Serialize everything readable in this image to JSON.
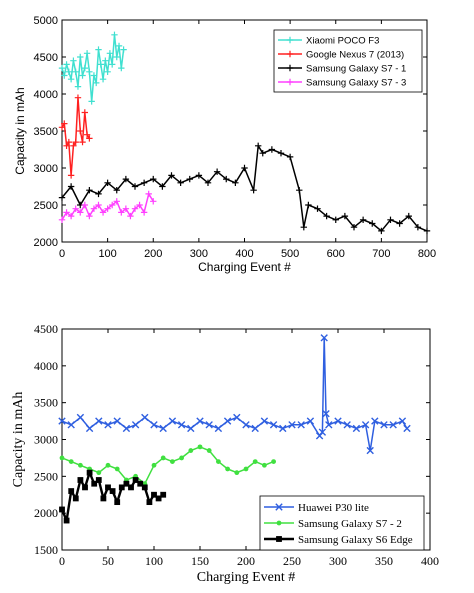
{
  "chart_data": [
    {
      "type": "line",
      "xlabel": "Charging Event #",
      "ylabel": "Capacity in mAh",
      "xlim": [
        0,
        800
      ],
      "ylim": [
        2000,
        5000
      ],
      "xticks": [
        "0",
        "100",
        "200",
        "300",
        "400",
        "500",
        "600",
        "700",
        "800"
      ],
      "yticks": [
        "2000",
        "2500",
        "3000",
        "3500",
        "4000",
        "4500",
        "5000"
      ],
      "grid": false,
      "legend_position": "top-right",
      "marker": "plus",
      "series": [
        {
          "name": "Xiaomi POCO F3",
          "color": "#40E0D0",
          "x": [
            0,
            5,
            10,
            15,
            20,
            25,
            30,
            35,
            40,
            45,
            50,
            55,
            60,
            65,
            70,
            75,
            80,
            85,
            90,
            95,
            100,
            105,
            110,
            115,
            120,
            125,
            130,
            135
          ],
          "values": [
            4350,
            4250,
            4400,
            4300,
            4200,
            4450,
            4300,
            4100,
            4500,
            4250,
            4350,
            4550,
            4300,
            3900,
            4250,
            4150,
            4600,
            4400,
            4200,
            4450,
            4300,
            4550,
            4400,
            4800,
            4500,
            4650,
            4350,
            4600
          ]
        },
        {
          "name": "Google Nexus 7 (2013)",
          "color": "#FF2020",
          "x": [
            0,
            5,
            10,
            15,
            20,
            25,
            30,
            35,
            40,
            45,
            50,
            55,
            60
          ],
          "values": [
            3550,
            3600,
            3300,
            3350,
            2900,
            3300,
            3350,
            3950,
            3500,
            3350,
            3750,
            3450,
            3400
          ]
        },
        {
          "name": "Samsung Galaxy S7 - 1",
          "color": "#000000",
          "x": [
            0,
            20,
            40,
            60,
            80,
            100,
            120,
            140,
            160,
            180,
            200,
            220,
            240,
            260,
            280,
            300,
            320,
            340,
            360,
            380,
            400,
            420,
            430,
            440,
            460,
            480,
            500,
            520,
            530,
            540,
            560,
            580,
            600,
            620,
            640,
            660,
            680,
            700,
            720,
            740,
            760,
            780,
            800
          ],
          "values": [
            2600,
            2750,
            2500,
            2700,
            2650,
            2800,
            2700,
            2850,
            2750,
            2800,
            2850,
            2750,
            2900,
            2800,
            2850,
            2900,
            2800,
            2950,
            2850,
            2800,
            3000,
            2700,
            3300,
            3200,
            3250,
            3200,
            3150,
            2700,
            2200,
            2500,
            2450,
            2350,
            2300,
            2350,
            2200,
            2300,
            2250,
            2150,
            2300,
            2250,
            2350,
            2200,
            2150
          ]
        },
        {
          "name": "Samsung Galaxy S7 - 3",
          "color": "#FF40FF",
          "x": [
            0,
            10,
            20,
            30,
            40,
            50,
            60,
            70,
            80,
            90,
            100,
            110,
            120,
            130,
            140,
            150,
            160,
            170,
            180,
            190,
            200
          ],
          "values": [
            2300,
            2400,
            2350,
            2450,
            2400,
            2500,
            2350,
            2450,
            2500,
            2400,
            2450,
            2500,
            2550,
            2400,
            2450,
            2350,
            2450,
            2500,
            2400,
            2650,
            2550
          ]
        }
      ]
    },
    {
      "type": "line",
      "xlabel": "Charging Event #",
      "ylabel": "Capacity in mAh",
      "xlim": [
        0,
        400
      ],
      "ylim": [
        1500,
        4500
      ],
      "xticks": [
        "0",
        "50",
        "100",
        "150",
        "200",
        "250",
        "300",
        "350",
        "400"
      ],
      "yticks": [
        "1500",
        "2000",
        "2500",
        "3000",
        "3500",
        "4000",
        "4500"
      ],
      "grid": false,
      "legend_position": "bottom-right",
      "series": [
        {
          "name": "Huawei P30 lite",
          "color": "#2F5FE0",
          "marker": "x",
          "x": [
            0,
            10,
            20,
            30,
            40,
            50,
            60,
            70,
            80,
            90,
            100,
            110,
            120,
            130,
            140,
            150,
            160,
            170,
            180,
            190,
            200,
            210,
            220,
            230,
            240,
            250,
            260,
            270,
            280,
            283,
            285,
            287,
            290,
            300,
            310,
            320,
            330,
            335,
            340,
            350,
            360,
            370,
            375
          ],
          "values": [
            3250,
            3200,
            3300,
            3150,
            3250,
            3200,
            3250,
            3150,
            3200,
            3300,
            3200,
            3150,
            3250,
            3200,
            3150,
            3250,
            3200,
            3150,
            3250,
            3300,
            3200,
            3150,
            3250,
            3200,
            3150,
            3200,
            3200,
            3250,
            3050,
            3100,
            4380,
            3350,
            3200,
            3250,
            3200,
            3150,
            3200,
            2850,
            3250,
            3200,
            3200,
            3250,
            3150
          ]
        },
        {
          "name": "Samsung Galaxy S7 - 2",
          "color": "#40E040",
          "marker": "dot",
          "x": [
            0,
            10,
            20,
            30,
            40,
            50,
            60,
            70,
            80,
            90,
            100,
            110,
            120,
            130,
            140,
            150,
            160,
            170,
            180,
            190,
            200,
            210,
            220,
            230
          ],
          "values": [
            2750,
            2700,
            2650,
            2600,
            2550,
            2650,
            2600,
            2450,
            2500,
            2400,
            2650,
            2750,
            2700,
            2750,
            2850,
            2900,
            2850,
            2700,
            2600,
            2550,
            2600,
            2700,
            2650,
            2700
          ]
        },
        {
          "name": "Samsung Galaxy S6 Edge",
          "color": "#000000",
          "marker": "square",
          "x": [
            0,
            5,
            10,
            15,
            20,
            25,
            30,
            35,
            40,
            45,
            50,
            55,
            60,
            65,
            70,
            75,
            80,
            85,
            90,
            95,
            100,
            105,
            110
          ],
          "values": [
            2050,
            1900,
            2300,
            2200,
            2450,
            2350,
            2550,
            2400,
            2450,
            2200,
            2350,
            2300,
            2150,
            2350,
            2400,
            2350,
            2450,
            2400,
            2350,
            2150,
            2250,
            2200,
            2250
          ]
        }
      ]
    }
  ]
}
